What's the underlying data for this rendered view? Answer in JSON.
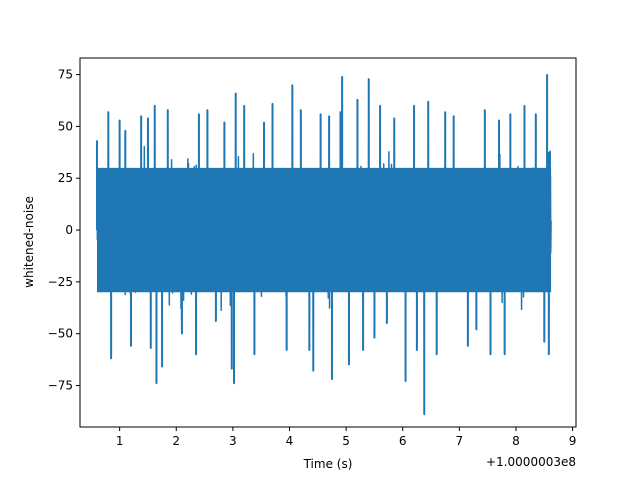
{
  "chart_data": {
    "type": "line",
    "title": "",
    "xlabel": "Time (s)",
    "ylabel": "whitened-noise",
    "x_offset_label": "+1.0000003e8",
    "xlim": [
      0.3,
      9.06
    ],
    "ylim": [
      -95,
      83
    ],
    "x_ticks": [
      1,
      2,
      3,
      4,
      5,
      6,
      7,
      8,
      9
    ],
    "y_ticks": [
      -75,
      -50,
      -25,
      0,
      25,
      50,
      75
    ],
    "grid": false,
    "legend": "none",
    "line_color": "#1f77b4",
    "series": [
      {
        "x_start": 0.6,
        "x_end": 8.62,
        "typical_range": [
          -45,
          45
        ],
        "peaks": [
          {
            "x": 0.6,
            "y": 43
          },
          {
            "x": 0.65,
            "y": -12
          },
          {
            "x": 0.8,
            "y": 57
          },
          {
            "x": 0.85,
            "y": -62
          },
          {
            "x": 1.0,
            "y": 53
          },
          {
            "x": 1.1,
            "y": 48
          },
          {
            "x": 1.2,
            "y": -56
          },
          {
            "x": 1.38,
            "y": 55
          },
          {
            "x": 1.55,
            "y": -57
          },
          {
            "x": 1.5,
            "y": 54
          },
          {
            "x": 1.62,
            "y": 60
          },
          {
            "x": 1.65,
            "y": -74
          },
          {
            "x": 1.75,
            "y": -66
          },
          {
            "x": 1.85,
            "y": 58
          },
          {
            "x": 2.1,
            "y": -50
          },
          {
            "x": 2.35,
            "y": -60
          },
          {
            "x": 2.4,
            "y": 56
          },
          {
            "x": 2.55,
            "y": 58
          },
          {
            "x": 2.7,
            "y": -44
          },
          {
            "x": 2.85,
            "y": 52
          },
          {
            "x": 2.98,
            "y": -67
          },
          {
            "x": 3.02,
            "y": -74
          },
          {
            "x": 3.05,
            "y": 66
          },
          {
            "x": 3.2,
            "y": 60
          },
          {
            "x": 3.38,
            "y": -60
          },
          {
            "x": 3.55,
            "y": 52
          },
          {
            "x": 3.7,
            "y": 61
          },
          {
            "x": 3.95,
            "y": -58
          },
          {
            "x": 4.05,
            "y": 70
          },
          {
            "x": 4.2,
            "y": 58
          },
          {
            "x": 4.35,
            "y": -58
          },
          {
            "x": 4.42,
            "y": -68
          },
          {
            "x": 4.55,
            "y": 56
          },
          {
            "x": 4.7,
            "y": 55
          },
          {
            "x": 4.75,
            "y": -72
          },
          {
            "x": 4.9,
            "y": 57
          },
          {
            "x": 4.93,
            "y": 74
          },
          {
            "x": 5.05,
            "y": -65
          },
          {
            "x": 5.2,
            "y": 63
          },
          {
            "x": 5.3,
            "y": -58
          },
          {
            "x": 5.4,
            "y": 73
          },
          {
            "x": 5.5,
            "y": -52
          },
          {
            "x": 5.6,
            "y": 60
          },
          {
            "x": 5.72,
            "y": -45
          },
          {
            "x": 5.85,
            "y": 54
          },
          {
            "x": 6.05,
            "y": -73
          },
          {
            "x": 6.2,
            "y": 60
          },
          {
            "x": 6.25,
            "y": -58
          },
          {
            "x": 6.38,
            "y": -89
          },
          {
            "x": 6.45,
            "y": 62
          },
          {
            "x": 6.6,
            "y": -60
          },
          {
            "x": 6.75,
            "y": 57
          },
          {
            "x": 6.9,
            "y": 55
          },
          {
            "x": 7.15,
            "y": -56
          },
          {
            "x": 7.3,
            "y": -48
          },
          {
            "x": 7.45,
            "y": 58
          },
          {
            "x": 7.55,
            "y": -60
          },
          {
            "x": 7.7,
            "y": 53
          },
          {
            "x": 7.8,
            "y": -60
          },
          {
            "x": 7.9,
            "y": 56
          },
          {
            "x": 8.15,
            "y": 60
          },
          {
            "x": 8.35,
            "y": 56
          },
          {
            "x": 8.5,
            "y": -54
          },
          {
            "x": 8.55,
            "y": 75
          },
          {
            "x": 8.58,
            "y": -60
          },
          {
            "x": 8.6,
            "y": 38
          }
        ]
      }
    ]
  }
}
